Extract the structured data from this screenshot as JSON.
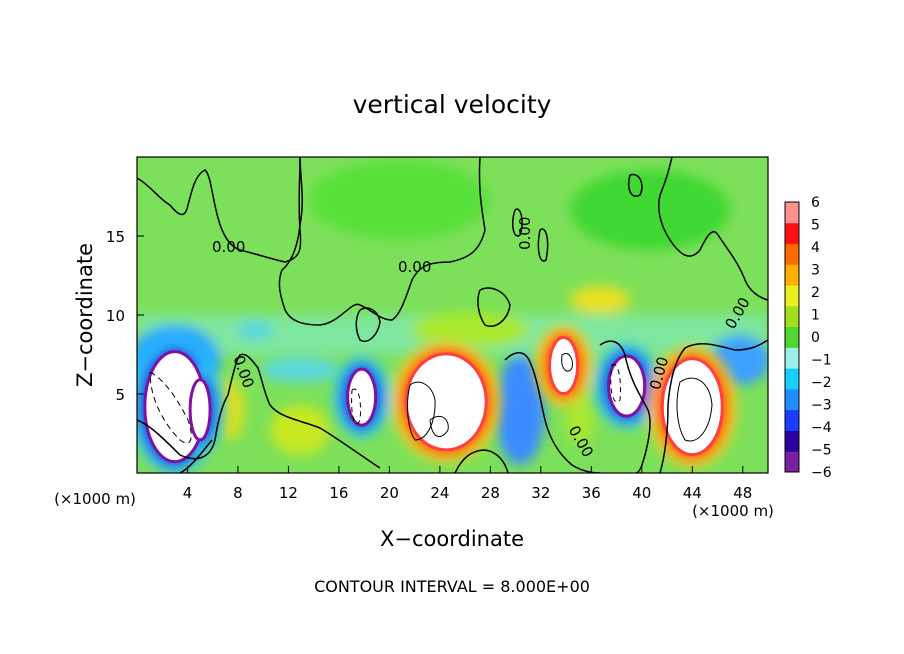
{
  "chart_data": {
    "type": "heatmap",
    "title": "vertical velocity",
    "xlabel": "X−coordinate",
    "ylabel": "Z−coordinate",
    "x_unit_left": "(×1000 m)",
    "x_unit_right": "(×1000 m)",
    "xlim": [
      0,
      50
    ],
    "ylim": [
      0,
      20
    ],
    "x_ticks": [
      4,
      8,
      12,
      16,
      20,
      24,
      28,
      32,
      36,
      40,
      44,
      48
    ],
    "y_ticks": [
      5,
      10,
      15
    ],
    "contour_interval_label": "CONTOUR INTERVAL = 8.000E+00",
    "contour_labels": [
      "0.00",
      "0.00",
      "0.00",
      "0.00",
      "0.00",
      "0.00",
      "0.00"
    ],
    "colorbar": {
      "ticks": [
        6,
        5,
        4,
        3,
        2,
        1,
        0,
        -1,
        -2,
        -3,
        -4,
        -5,
        -6
      ],
      "range": [
        -6,
        6
      ],
      "colors": [
        "#7a1fa0",
        "#2a00a0",
        "#1a3cff",
        "#1f8fff",
        "#18d0ff",
        "#9cf0e8",
        "#50d830",
        "#a0e020",
        "#e8f020",
        "#ffb000",
        "#ff6a00",
        "#ff1010",
        "#ff9090"
      ]
    },
    "cells_8a": [
      {
        "x": 3,
        "z": 4.2,
        "w": -7
      },
      {
        "x": 5,
        "z": 4,
        "w": -4.5
      },
      {
        "x": 17.8,
        "z": 4.8,
        "w": -6.5
      },
      {
        "x": 24.5,
        "z": 4.5,
        "w": 7
      },
      {
        "x": 33.8,
        "z": 6.8,
        "w": 6
      },
      {
        "x": 38.8,
        "z": 5.5,
        "w": -5.5
      },
      {
        "x": 44,
        "z": 4.2,
        "w": 7
      }
    ]
  }
}
